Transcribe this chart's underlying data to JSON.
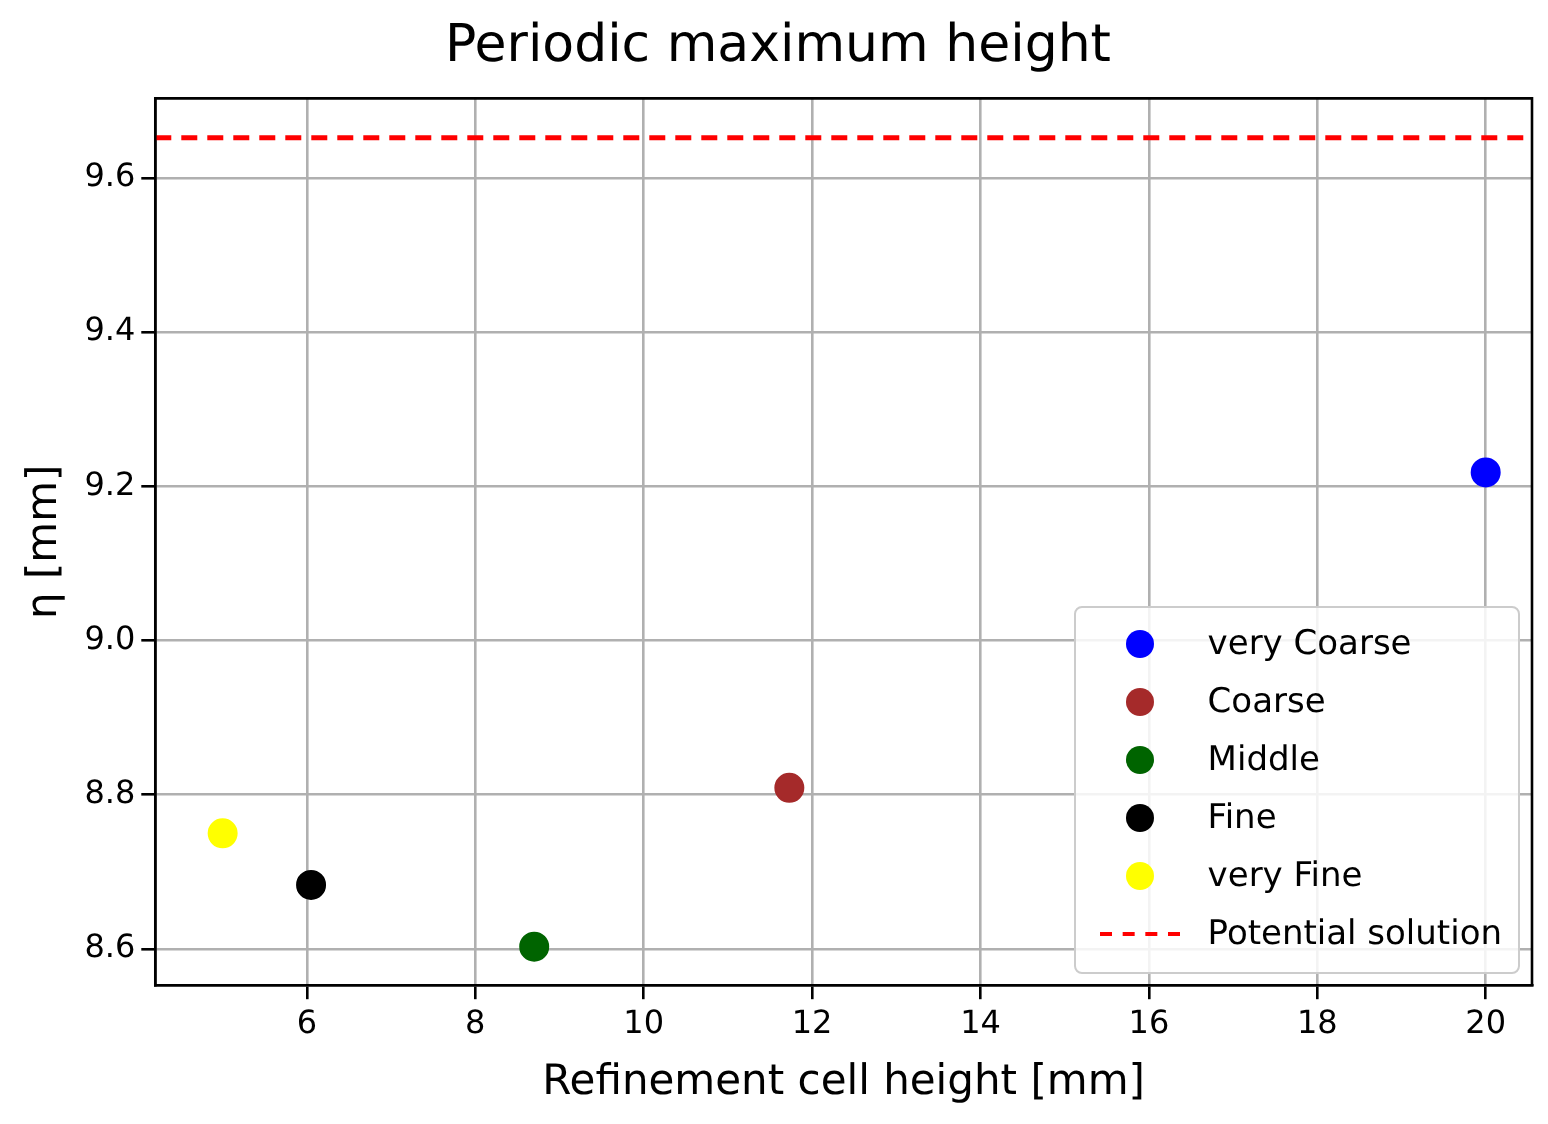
{
  "chart_data": {
    "type": "scatter",
    "title": "Periodic maximum height",
    "xlabel": "Refinement cell height [mm]",
    "ylabel": "η [mm]",
    "xlim": [
      4.2,
      20.55
    ],
    "xticks": [
      6,
      8,
      10,
      12,
      14,
      16,
      18,
      20
    ],
    "ylim": [
      8.553,
      9.703
    ],
    "yticks": [
      8.6,
      8.8,
      {
        "value": 9,
        "label": "9.0"
      },
      9.2,
      9.4,
      9.6
    ],
    "grid": true,
    "legend": "bottom right",
    "marker": "circle",
    "series": [
      {
        "name": "very Coarse",
        "color": "#0000ff",
        "x": [
          20
        ],
        "values": [
          9.218
        ]
      },
      {
        "name": "Coarse",
        "color": "#a52a2a",
        "x": [
          11.73
        ],
        "values": [
          8.809
        ]
      },
      {
        "name": "Middle",
        "color": "#006400",
        "x": [
          8.7
        ],
        "values": [
          8.603
        ]
      },
      {
        "name": "Fine",
        "color": "#000000",
        "x": [
          6.05
        ],
        "values": [
          8.683
        ]
      },
      {
        "name": "very Fine",
        "color": "#ffff00",
        "x": [
          5.0
        ],
        "values": [
          8.75
        ]
      }
    ],
    "ref_lines": [
      {
        "axis": "y",
        "value": 9.652,
        "label": "Potential solution",
        "color": "#ff0000",
        "line_style": "dashed"
      }
    ]
  }
}
